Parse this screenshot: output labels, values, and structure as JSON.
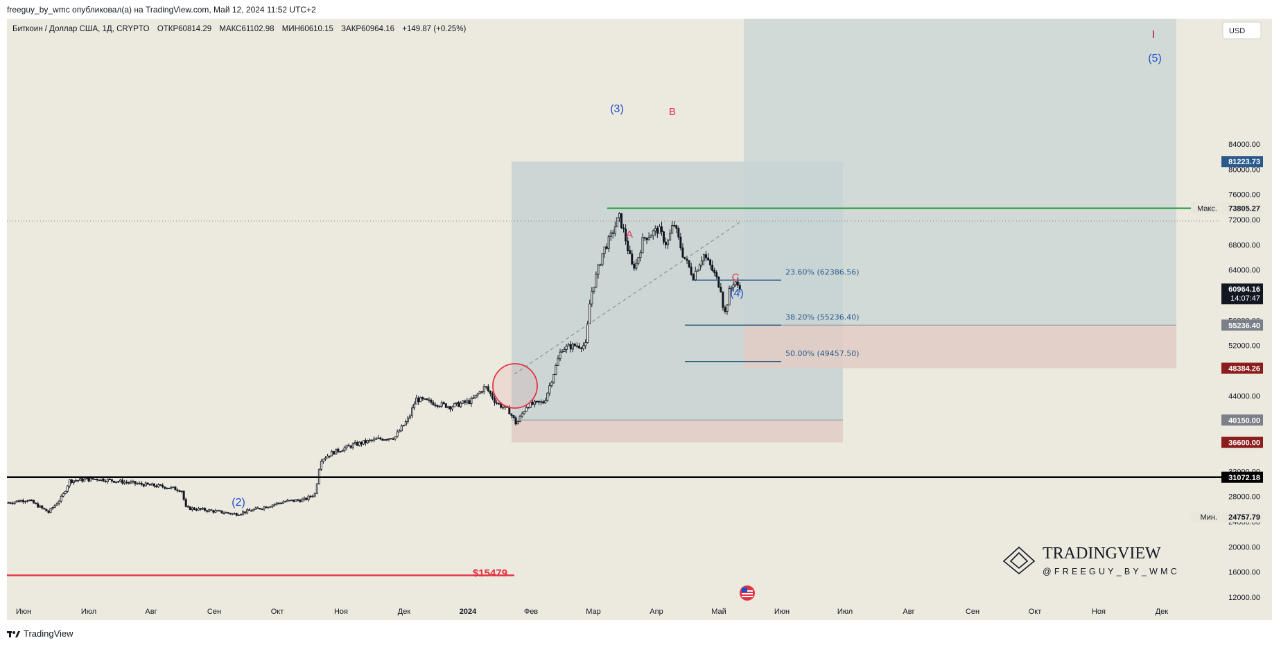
{
  "header": {
    "publish_line": "freeguy_by_wmc опубликовал(а) на TradingView.com, Май 12, 2024 11:52 UTC+2"
  },
  "legend": {
    "symbol": "Биткоин / Доллар США, 1Д, CRYPTO",
    "open": "ОТКР60814.29",
    "high": "МАКС61102.98",
    "low": "МИН60610.15",
    "close": "ЗАКР60964.16",
    "change": "+149.87 (+0.25%)"
  },
  "currency_button": "USD",
  "footer": {
    "brand": "TradingView"
  },
  "watermark": {
    "name": "TRADINGVIEW",
    "handle": "@FREEGUY_BY_WMC"
  },
  "colors": {
    "background": "#ece9df",
    "candle": "#131722",
    "long_zone": "#c7d3d4",
    "short_zone": "#e1cdc6",
    "fib_line": "#1f4e79",
    "green_line": "#2ea043",
    "red_line": "#e33244",
    "accent_blue": "#1e4fc9",
    "accent_red": "#e3334a"
  },
  "chart_data": {
    "type": "candlestick",
    "symbol": "BTCUSD",
    "timeframe": "1D",
    "y_axis": {
      "ticks": [
        "84000.00",
        "80000.00",
        "76000.00",
        "72000.00",
        "68000.00",
        "64000.00",
        "56000.00",
        "52000.00",
        "44000.00",
        "32000.00",
        "28000.00",
        "24000.00",
        "20000.00",
        "16000.00",
        "12000.00"
      ],
      "ylim": [
        9500,
        87000
      ]
    },
    "x_axis": {
      "ticks": [
        "Июн",
        "Июл",
        "Авг",
        "Сен",
        "Окт",
        "Ноя",
        "Дек",
        "2024",
        "Фев",
        "Мар",
        "Апр",
        "Май",
        "Июн",
        "Июл",
        "Авг",
        "Сен",
        "Окт",
        "Ноя",
        "Дек"
      ]
    },
    "price_labels": [
      {
        "text": "81223.73",
        "value": 81223.73,
        "color": "#2a5a8c"
      },
      {
        "text": "73805.27",
        "value": 73805.27,
        "color": "#e9e6dc",
        "prefix": "Макс."
      },
      {
        "text": "60964.16",
        "value": 60964.16,
        "color": "#131722",
        "sub": "14:07:47"
      },
      {
        "text": "55236.40",
        "value": 55236.4,
        "color": "#7a7f88"
      },
      {
        "text": "48384.26",
        "value": 48384.26,
        "color": "#8b1d1d"
      },
      {
        "text": "40150.00",
        "value": 40150.0,
        "color": "#7a7f88"
      },
      {
        "text": "36600.00",
        "value": 36600.0,
        "color": "#8b1d1d"
      },
      {
        "text": "31072.18",
        "value": 31072.18,
        "color": "#000000"
      },
      {
        "text": "24757.79",
        "value": 24757.79,
        "color": "#e9e6dc",
        "prefix": "Мин."
      }
    ],
    "horizontal_lines": [
      {
        "value": 73805.27,
        "color": "#2ea043"
      },
      {
        "value": 31072.18,
        "color": "#000000"
      },
      {
        "value": 15479,
        "color": "#e33244",
        "label": "$15479"
      }
    ],
    "fib_levels": [
      {
        "label": "23.60% (62386.56)",
        "value": 62386.56
      },
      {
        "label": "38.20% (55236.40)",
        "value": 55236.4
      },
      {
        "label": "50.00% (49457.50)",
        "value": 49457.5
      }
    ],
    "wave_labels": [
      {
        "text": "(2)",
        "color": "#1e4fc9"
      },
      {
        "text": "(3)",
        "color": "#1e4fc9"
      },
      {
        "text": "(4)",
        "color": "#1e4fc9"
      },
      {
        "text": "(5)",
        "color": "#1e4fc9"
      },
      {
        "text": "I",
        "color": "#a31626"
      },
      {
        "text": "A",
        "color": "#e3334a"
      },
      {
        "text": "B",
        "color": "#e3334a"
      },
      {
        "text": "C",
        "color": "#e3334a"
      }
    ],
    "position_zones": [
      {
        "kind": "long",
        "entry": 40150.0,
        "target": 81223.73,
        "stop": 36600.0
      },
      {
        "kind": "long",
        "entry": 55236.4,
        "target": 87000,
        "stop": 48384.26
      }
    ],
    "candles_approx": [
      {
        "date": "2023-06",
        "close": 27000
      },
      {
        "date": "2023-06-22",
        "close": 30000
      },
      {
        "date": "2023-07",
        "close": 30500
      },
      {
        "date": "2023-08-17",
        "close": 26500
      },
      {
        "date": "2023-09-11",
        "close": 25000
      },
      {
        "date": "2023-10-15",
        "close": 27000
      },
      {
        "date": "2023-10-24",
        "close": 34500
      },
      {
        "date": "2023-11",
        "close": 36500
      },
      {
        "date": "2023-12-05",
        "close": 43500
      },
      {
        "date": "2024-01-11",
        "close": 46500
      },
      {
        "date": "2024-01-23",
        "close": 39500
      },
      {
        "date": "2024-02-15",
        "close": 52000
      },
      {
        "date": "2024-03-14",
        "close": 73000
      },
      {
        "date": "2024-03-20",
        "close": 62000
      },
      {
        "date": "2024-03-27",
        "close": 70000
      },
      {
        "date": "2024-04-13",
        "close": 64000
      },
      {
        "date": "2024-05-01",
        "close": 57000
      },
      {
        "date": "2024-05-12",
        "close": 60964.16
      }
    ]
  }
}
